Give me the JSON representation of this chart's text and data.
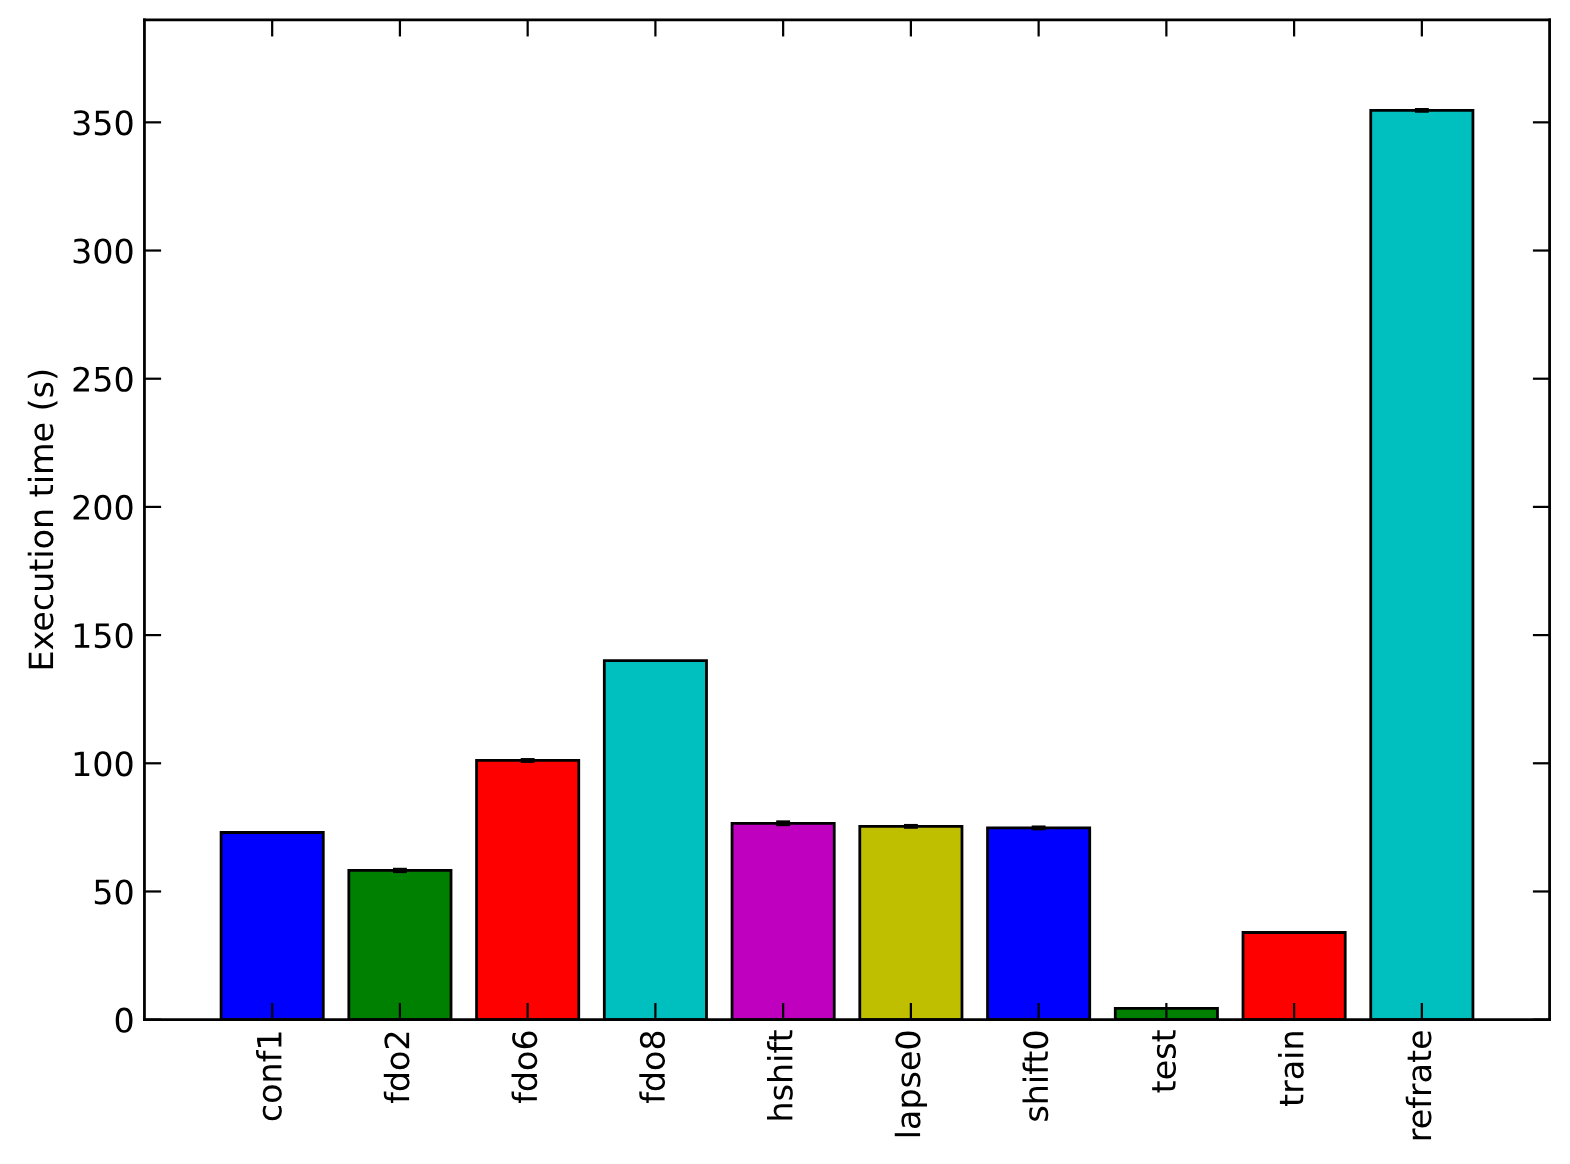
{
  "chart_data": {
    "type": "bar",
    "ylabel": "Execution time (s)",
    "categories": [
      "conf1",
      "fdo2",
      "fdo6",
      "fdo8",
      "hshift",
      "lapse0",
      "shift0",
      "test",
      "train",
      "refrate"
    ],
    "values": [
      73,
      58.2,
      101.1,
      140,
      76.6,
      75.4,
      74.8,
      4.4,
      34,
      354.7
    ],
    "errors": [
      null,
      0.5,
      0.4,
      null,
      0.6,
      0.4,
      0.4,
      null,
      null,
      0.4
    ],
    "colors": [
      "#0000ff",
      "#008000",
      "#ff0000",
      "#00bfbf",
      "#bf00bf",
      "#bfbf00",
      "#0000ff",
      "#008000",
      "#ff0000",
      "#00bfbf"
    ],
    "ylim": [
      0,
      390
    ],
    "yticks": [
      0,
      50,
      100,
      150,
      200,
      250,
      300,
      350
    ],
    "grid": false
  }
}
